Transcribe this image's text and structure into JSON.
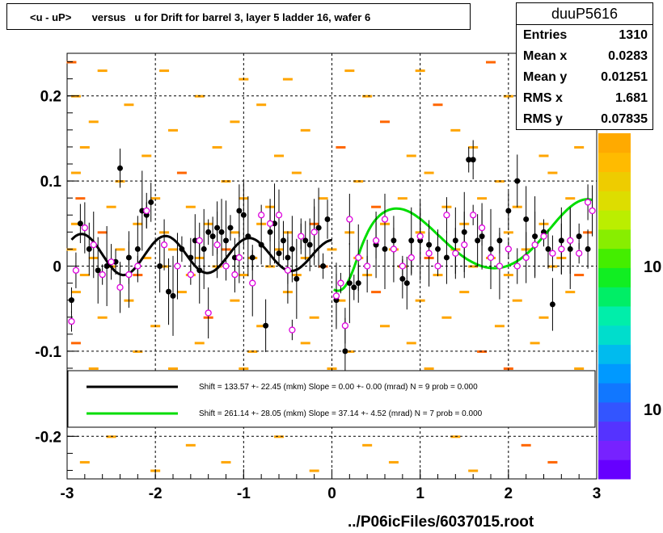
{
  "title": "<u - uP>       versus   u for Drift for barrel 3, layer 5 ladder 16, wafer 6",
  "footer": "../P06icFiles/6037015.root",
  "stats": {
    "name": "duuP5616",
    "rows": [
      {
        "key": "Entries",
        "value": "1310"
      },
      {
        "key": "Mean x",
        "value": "0.0283"
      },
      {
        "key": "Mean y",
        "value": "0.01251"
      },
      {
        "key": "RMS x",
        "value": "1.681"
      },
      {
        "key": "RMS y",
        "value": "0.07835"
      }
    ]
  },
  "color_scale_labels": [
    "10",
    "10"
  ],
  "legend": [
    {
      "color": "#000000",
      "text": "Shift =   133.57 +- 22.45 (mkm) Slope =     0.00 +- 0.00 (mrad)  N = 9 prob = 0.000"
    },
    {
      "color": "#00dd00",
      "text": "Shift =   261.14 +- 28.05 (mkm) Slope =    37.14 +- 4.52 (mrad)  N = 7 prob = 0.000"
    }
  ],
  "chart_data": {
    "type": "scatter",
    "xlim": [
      -3,
      3
    ],
    "ylim": [
      -0.25,
      0.25
    ],
    "x_ticks": [
      -3,
      -2,
      -1,
      0,
      1,
      2,
      3
    ],
    "y_ticks": [
      -0.2,
      -0.1,
      0,
      0.1,
      0.2
    ],
    "x_tick_labels": [
      "-3",
      "-2",
      "-1",
      "0",
      "1",
      "2",
      "3"
    ],
    "y_tick_labels": [
      "-0.2",
      "-0.1",
      "0",
      "0.1",
      "0.2"
    ],
    "grid": true,
    "colors": {
      "histogram": "#ffa500",
      "profile_black": "#000000",
      "profile_magenta": "#dd00dd",
      "fit_black": "#000000",
      "fit_green": "#00dd00"
    },
    "histogram_cells": [
      [
        -2.95,
        0.24
      ],
      [
        -2.6,
        0.23
      ],
      [
        -1.9,
        0.23
      ],
      [
        -1.0,
        0.22
      ],
      [
        -0.5,
        0.22
      ],
      [
        0.2,
        0.23
      ],
      [
        1.0,
        0.23
      ],
      [
        1.8,
        0.24
      ],
      [
        2.3,
        0.22
      ],
      [
        -2.9,
        0.2
      ],
      [
        -2.3,
        0.19
      ],
      [
        -1.5,
        0.2
      ],
      [
        -0.8,
        0.19
      ],
      [
        0.4,
        0.2
      ],
      [
        1.2,
        0.19
      ],
      [
        2.0,
        0.2
      ],
      [
        2.6,
        0.19
      ],
      [
        -2.7,
        0.17
      ],
      [
        -1.8,
        0.16
      ],
      [
        -1.1,
        0.17
      ],
      [
        -0.3,
        0.16
      ],
      [
        0.6,
        0.17
      ],
      [
        1.4,
        0.16
      ],
      [
        2.2,
        0.17
      ],
      [
        -2.8,
        0.14
      ],
      [
        -2.1,
        0.13
      ],
      [
        -1.3,
        0.14
      ],
      [
        -0.6,
        0.13
      ],
      [
        0.1,
        0.14
      ],
      [
        0.9,
        0.13
      ],
      [
        1.6,
        0.14
      ],
      [
        2.4,
        0.13
      ],
      [
        2.8,
        0.14
      ],
      [
        -2.9,
        0.11
      ],
      [
        -2.4,
        0.1
      ],
      [
        -1.7,
        0.11
      ],
      [
        -1.2,
        0.1
      ],
      [
        -0.4,
        0.11
      ],
      [
        0.3,
        0.1
      ],
      [
        1.1,
        0.11
      ],
      [
        1.9,
        0.1
      ],
      [
        2.5,
        0.11
      ],
      [
        -2.85,
        0.08
      ],
      [
        -2.5,
        0.07
      ],
      [
        -2.0,
        0.08
      ],
      [
        -1.6,
        0.07
      ],
      [
        -1.0,
        0.08
      ],
      [
        -0.7,
        0.07
      ],
      [
        -0.1,
        0.08
      ],
      [
        0.5,
        0.07
      ],
      [
        0.8,
        0.08
      ],
      [
        1.3,
        0.07
      ],
      [
        1.7,
        0.08
      ],
      [
        2.1,
        0.07
      ],
      [
        2.7,
        0.08
      ],
      [
        -2.9,
        0.05
      ],
      [
        -2.6,
        0.04
      ],
      [
        -2.2,
        0.05
      ],
      [
        -1.9,
        0.04
      ],
      [
        -1.4,
        0.05
      ],
      [
        -1.1,
        0.04
      ],
      [
        -0.8,
        0.05
      ],
      [
        -0.5,
        0.04
      ],
      [
        -0.2,
        0.05
      ],
      [
        0.2,
        0.04
      ],
      [
        0.6,
        0.05
      ],
      [
        1.0,
        0.04
      ],
      [
        1.5,
        0.05
      ],
      [
        2.0,
        0.04
      ],
      [
        2.4,
        0.05
      ],
      [
        2.9,
        0.04
      ],
      [
        -2.95,
        0.02
      ],
      [
        -2.7,
        0.01
      ],
      [
        -2.4,
        0.02
      ],
      [
        -2.1,
        0.01
      ],
      [
        -1.8,
        0.02
      ],
      [
        -1.5,
        0.01
      ],
      [
        -1.2,
        0.02
      ],
      [
        -0.9,
        0.01
      ],
      [
        -0.6,
        0.02
      ],
      [
        -0.3,
        0.01
      ],
      [
        0.0,
        0.02
      ],
      [
        0.3,
        0.01
      ],
      [
        0.7,
        0.02
      ],
      [
        1.1,
        0.01
      ],
      [
        1.4,
        0.02
      ],
      [
        1.8,
        0.01
      ],
      [
        2.2,
        0.02
      ],
      [
        2.6,
        0.01
      ],
      [
        -2.8,
        -0.01
      ],
      [
        -2.5,
        0.0
      ],
      [
        -2.2,
        -0.01
      ],
      [
        -1.9,
        0.0
      ],
      [
        -1.6,
        -0.01
      ],
      [
        -1.3,
        0.0
      ],
      [
        -1.0,
        -0.01
      ],
      [
        -0.7,
        0.0
      ],
      [
        -0.4,
        -0.01
      ],
      [
        -0.1,
        0.0
      ],
      [
        0.4,
        -0.01
      ],
      [
        0.8,
        0.0
      ],
      [
        1.2,
        -0.01
      ],
      [
        1.6,
        0.0
      ],
      [
        2.0,
        -0.01
      ],
      [
        2.5,
        0.0
      ],
      [
        2.8,
        -0.01
      ],
      [
        -2.9,
        -0.03
      ],
      [
        -2.3,
        -0.04
      ],
      [
        -1.7,
        -0.03
      ],
      [
        -1.1,
        -0.04
      ],
      [
        -0.5,
        -0.03
      ],
      [
        0.1,
        -0.04
      ],
      [
        0.5,
        -0.03
      ],
      [
        1.0,
        -0.04
      ],
      [
        1.5,
        -0.03
      ],
      [
        2.1,
        -0.04
      ],
      [
        2.7,
        -0.03
      ],
      [
        -2.6,
        -0.06
      ],
      [
        -2.0,
        -0.07
      ],
      [
        -1.4,
        -0.06
      ],
      [
        -0.8,
        -0.07
      ],
      [
        -0.2,
        -0.06
      ],
      [
        0.6,
        -0.07
      ],
      [
        1.3,
        -0.06
      ],
      [
        1.9,
        -0.07
      ],
      [
        2.4,
        -0.06
      ],
      [
        -2.9,
        -0.09
      ],
      [
        -2.2,
        -0.1
      ],
      [
        -1.5,
        -0.09
      ],
      [
        -0.9,
        -0.1
      ],
      [
        -0.3,
        -0.09
      ],
      [
        0.2,
        -0.1
      ],
      [
        0.9,
        -0.09
      ],
      [
        1.7,
        -0.1
      ],
      [
        2.3,
        -0.09
      ],
      [
        -2.7,
        -0.12
      ],
      [
        -1.8,
        -0.12
      ],
      [
        -1.0,
        -0.12
      ],
      [
        0.0,
        -0.12
      ],
      [
        1.1,
        -0.12
      ],
      [
        2.0,
        -0.12
      ],
      [
        2.8,
        -0.12
      ],
      [
        -2.5,
        -0.2
      ],
      [
        -1.6,
        -0.21
      ],
      [
        -0.6,
        -0.2
      ],
      [
        0.4,
        -0.21
      ],
      [
        1.4,
        -0.2
      ],
      [
        2.2,
        -0.21
      ],
      [
        -2.8,
        -0.23
      ],
      [
        -2.0,
        -0.24
      ],
      [
        -1.2,
        -0.23
      ],
      [
        -0.2,
        -0.24
      ],
      [
        0.7,
        -0.23
      ],
      [
        1.6,
        -0.24
      ],
      [
        2.5,
        -0.23
      ]
    ],
    "profile_black": [
      [
        -2.95,
        -0.04
      ],
      [
        -2.85,
        0.05
      ],
      [
        -2.75,
        0.02
      ],
      [
        -2.65,
        -0.005
      ],
      [
        -2.55,
        0.0
      ],
      [
        -2.45,
        0.005
      ],
      [
        -2.4,
        0.115
      ],
      [
        -2.3,
        0.01
      ],
      [
        -2.2,
        0.02
      ],
      [
        -2.15,
        0.065
      ],
      [
        -2.1,
        0.06
      ],
      [
        -2.05,
        0.075
      ],
      [
        -1.95,
        0.0
      ],
      [
        -1.85,
        -0.03
      ],
      [
        -1.8,
        -0.035
      ],
      [
        -1.7,
        0.02
      ],
      [
        -1.6,
        0.01
      ],
      [
        -1.55,
        0.03
      ],
      [
        -1.5,
        -0.005
      ],
      [
        -1.45,
        0.02
      ],
      [
        -1.4,
        0.04
      ],
      [
        -1.35,
        0.035
      ],
      [
        -1.3,
        0.045
      ],
      [
        -1.25,
        0.04
      ],
      [
        -1.2,
        0.03
      ],
      [
        -1.15,
        0.045
      ],
      [
        -1.1,
        0.01
      ],
      [
        -1.05,
        0.065
      ],
      [
        -1.0,
        0.06
      ],
      [
        -0.95,
        0.035
      ],
      [
        -0.9,
        0.01
      ],
      [
        -0.8,
        0.025
      ],
      [
        -0.75,
        -0.07
      ],
      [
        -0.7,
        0.04
      ],
      [
        -0.65,
        0.05
      ],
      [
        -0.6,
        0.015
      ],
      [
        -0.55,
        0.03
      ],
      [
        -0.5,
        0.01
      ],
      [
        -0.45,
        0.02
      ],
      [
        -0.4,
        -0.015
      ],
      [
        -0.35,
        0.035
      ],
      [
        -0.3,
        0.03
      ],
      [
        -0.25,
        0.025
      ],
      [
        -0.2,
        0.04
      ],
      [
        -0.15,
        0.045
      ],
      [
        -0.1,
        0.0
      ],
      [
        -0.05,
        0.055
      ],
      [
        0.05,
        -0.04
      ],
      [
        0.15,
        -0.1
      ],
      [
        0.2,
        -0.02
      ],
      [
        0.25,
        -0.025
      ],
      [
        0.3,
        -0.02
      ],
      [
        0.4,
        0.0
      ],
      [
        0.5,
        0.025
      ],
      [
        0.6,
        0.02
      ],
      [
        0.7,
        0.03
      ],
      [
        0.8,
        -0.015
      ],
      [
        0.85,
        -0.02
      ],
      [
        0.9,
        0.03
      ],
      [
        1.0,
        0.03
      ],
      [
        1.1,
        0.025
      ],
      [
        1.2,
        0.02
      ],
      [
        1.3,
        0.01
      ],
      [
        1.4,
        0.03
      ],
      [
        1.5,
        0.04
      ],
      [
        1.55,
        0.125
      ],
      [
        1.6,
        0.125
      ],
      [
        1.65,
        0.03
      ],
      [
        1.7,
        0.035
      ],
      [
        1.8,
        0.02
      ],
      [
        1.9,
        0.03
      ],
      [
        2.0,
        0.065
      ],
      [
        2.1,
        0.1
      ],
      [
        2.2,
        0.055
      ],
      [
        2.3,
        0.035
      ],
      [
        2.4,
        0.04
      ],
      [
        2.45,
        0.02
      ],
      [
        2.5,
        -0.045
      ],
      [
        2.6,
        0.03
      ],
      [
        2.7,
        0.02
      ],
      [
        2.8,
        0.035
      ],
      [
        2.9,
        0.02
      ]
    ],
    "profile_magenta": [
      [
        -2.95,
        -0.065
      ],
      [
        -2.9,
        -0.005
      ],
      [
        -2.8,
        0.045
      ],
      [
        -2.7,
        0.025
      ],
      [
        -2.6,
        -0.01
      ],
      [
        -2.5,
        0.005
      ],
      [
        -2.4,
        -0.025
      ],
      [
        -2.3,
        -0.01
      ],
      [
        -2.2,
        0.0
      ],
      [
        -2.1,
        0.065
      ],
      [
        -1.9,
        0.025
      ],
      [
        -1.75,
        0.0
      ],
      [
        -1.6,
        -0.01
      ],
      [
        -1.5,
        0.03
      ],
      [
        -1.4,
        -0.055
      ],
      [
        -1.3,
        0.025
      ],
      [
        -1.2,
        0.0
      ],
      [
        -1.1,
        -0.01
      ],
      [
        -1.05,
        0.01
      ],
      [
        -0.9,
        -0.02
      ],
      [
        -0.8,
        0.06
      ],
      [
        -0.7,
        0.05
      ],
      [
        -0.6,
        0.06
      ],
      [
        -0.5,
        -0.005
      ],
      [
        -0.45,
        -0.075
      ],
      [
        -0.35,
        0.035
      ],
      [
        -0.2,
        0.04
      ],
      [
        0.05,
        -0.035
      ],
      [
        0.1,
        -0.02
      ],
      [
        0.15,
        -0.07
      ],
      [
        0.2,
        0.055
      ],
      [
        0.3,
        0.01
      ],
      [
        0.4,
        0.0
      ],
      [
        0.5,
        0.03
      ],
      [
        0.6,
        0.055
      ],
      [
        0.7,
        0.02
      ],
      [
        0.8,
        0.0
      ],
      [
        0.9,
        0.01
      ],
      [
        1.0,
        0.035
      ],
      [
        1.1,
        0.015
      ],
      [
        1.2,
        0.0
      ],
      [
        1.3,
        0.06
      ],
      [
        1.4,
        0.015
      ],
      [
        1.5,
        0.025
      ],
      [
        1.6,
        0.06
      ],
      [
        1.7,
        0.045
      ],
      [
        1.8,
        0.01
      ],
      [
        1.9,
        0.0
      ],
      [
        2.0,
        0.02
      ],
      [
        2.1,
        0.0
      ],
      [
        2.2,
        0.01
      ],
      [
        2.3,
        0.025
      ],
      [
        2.4,
        0.035
      ],
      [
        2.5,
        0.015
      ],
      [
        2.6,
        0.02
      ],
      [
        2.7,
        0.03
      ],
      [
        2.8,
        0.015
      ],
      [
        2.9,
        0.075
      ],
      [
        2.95,
        0.065
      ]
    ]
  }
}
